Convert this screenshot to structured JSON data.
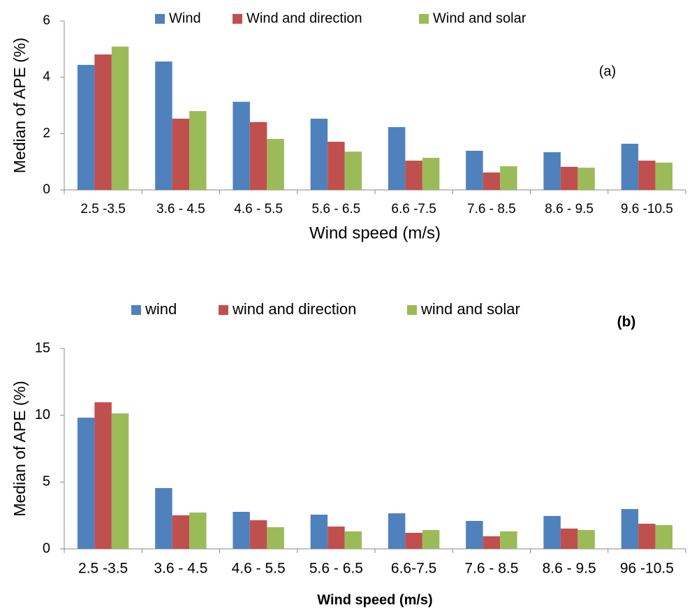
{
  "chart_data": [
    {
      "type": "bar",
      "categories": [
        "2.5 -3.5",
        "3.6 - 4.5",
        "4.6 - 5.5",
        "5.6 - 6.5",
        "6.6 -7.5",
        "7.6 - 8.5",
        "8.6 - 9.5",
        "9.6 -10.5"
      ],
      "series": [
        {
          "name": "Wind",
          "color": "#4f81bd",
          "values": [
            4.44,
            4.56,
            3.13,
            2.53,
            2.23,
            1.39,
            1.34,
            1.64
          ]
        },
        {
          "name": "Wind and direction",
          "color": "#c0504d",
          "values": [
            4.81,
            2.53,
            2.41,
            1.71,
            1.04,
            0.62,
            0.82,
            1.04
          ]
        },
        {
          "name": "Wind and solar",
          "color": "#9bbb59",
          "values": [
            5.09,
            2.8,
            1.81,
            1.36,
            1.14,
            0.84,
            0.79,
            0.97
          ]
        }
      ],
      "ylim": [
        0,
        6
      ],
      "yticks": [
        0,
        2,
        4,
        6
      ],
      "xlabel": "Wind speed (m/s)",
      "ylabel": "Median of APE (%)",
      "annotation": "(a)"
    },
    {
      "type": "bar",
      "categories": [
        "2.5 -3.5",
        "3.6 - 4.5",
        "4.6 - 5.5",
        "5.6 - 6.5",
        "6.6-7.5",
        "7.6 - 8.5",
        "8.6 - 9.5",
        "96 -10.5"
      ],
      "series": [
        {
          "name": "wind",
          "color": "#4f81bd",
          "values": [
            9.82,
            4.55,
            2.77,
            2.56,
            2.66,
            2.09,
            2.46,
            2.98
          ]
        },
        {
          "name": "wind and direction",
          "color": "#c0504d",
          "values": [
            10.97,
            2.51,
            2.14,
            1.67,
            1.2,
            0.94,
            1.52,
            1.88
          ]
        },
        {
          "name": "wind and solar",
          "color": "#9bbb59",
          "values": [
            10.14,
            2.72,
            1.62,
            1.31,
            1.41,
            1.31,
            1.41,
            1.78
          ]
        }
      ],
      "ylim": [
        0,
        15
      ],
      "yticks": [
        0,
        5,
        10,
        15
      ],
      "xlabel": "Wind speed (m/s)",
      "ylabel": "Median of APE (%)",
      "annotation": "(b)"
    }
  ]
}
